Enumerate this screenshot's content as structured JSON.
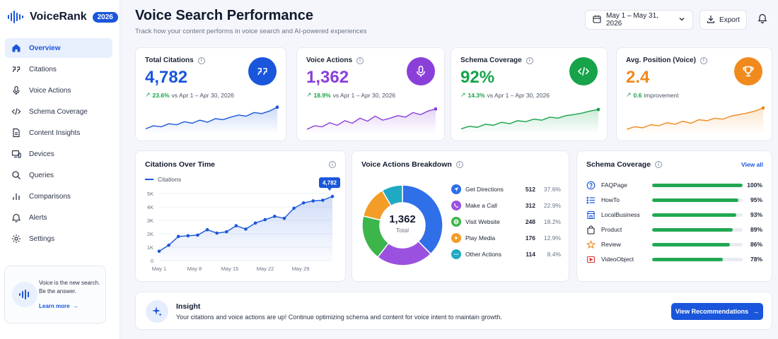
{
  "brand": {
    "name": "VoiceRank",
    "badge": "2026"
  },
  "sidebar": {
    "items": [
      {
        "label": "Overview",
        "icon": "home-icon",
        "active": true
      },
      {
        "label": "Citations",
        "icon": "quote-icon"
      },
      {
        "label": "Voice Actions",
        "icon": "microphone-icon"
      },
      {
        "label": "Schema Coverage",
        "icon": "code-icon"
      },
      {
        "label": "Content Insights",
        "icon": "document-icon"
      },
      {
        "label": "Devices",
        "icon": "devices-icon"
      },
      {
        "label": "Queries",
        "icon": "search-icon"
      },
      {
        "label": "Comparisons",
        "icon": "bar-chart-icon"
      },
      {
        "label": "Alerts",
        "icon": "bell-icon"
      },
      {
        "label": "Settings",
        "icon": "gear-icon"
      }
    ],
    "promo": {
      "text": "Voice is the new search. Be the answer.",
      "link": "Learn more"
    }
  },
  "header": {
    "title": "Voice Search Performance",
    "subtitle": "Track how your content performs in voice search and AI-powered experiences",
    "date_range": "May 1 – May 31, 2026",
    "export_label": "Export"
  },
  "kpis": [
    {
      "label": "Total Citations",
      "value": "4,782",
      "delta": "23.6%",
      "comparison": "vs Apr 1 – Apr 30, 2026",
      "color": "#1a56db",
      "icon": "quote-icon"
    },
    {
      "label": "Voice Actions",
      "value": "1,362",
      "delta": "18.9%",
      "comparison": "vs Apr 1 – Apr 30, 2026",
      "color": "#8b3fd9",
      "icon": "microphone-icon"
    },
    {
      "label": "Schema Coverage",
      "value": "92%",
      "delta": "14.3%",
      "comparison": "vs Apr 1 – Apr 30, 2026",
      "color": "#16a34a",
      "icon": "code-icon"
    },
    {
      "label": "Avg. Position (Voice)",
      "value": "2.4",
      "delta": "0.6",
      "comparison": "improvement",
      "color": "#f08a1c",
      "icon": "trophy-icon"
    }
  ],
  "citations_chart": {
    "title": "Citations Over Time",
    "legend": "Citations",
    "callout": "4,782"
  },
  "breakdown": {
    "title": "Voice Actions Breakdown",
    "total_value": "1,362",
    "total_label": "Total",
    "items": [
      {
        "name": "Get Directions",
        "count": "512",
        "pct": "37.6%",
        "color": "#2f6fe8",
        "icon": "navigation-icon"
      },
      {
        "name": "Make a Call",
        "count": "312",
        "pct": "22.9%",
        "color": "#9b51e0",
        "icon": "phone-icon"
      },
      {
        "name": "Visit Website",
        "count": "248",
        "pct": "18.2%",
        "color": "#3cb54a",
        "icon": "globe-icon"
      },
      {
        "name": "Play Media",
        "count": "176",
        "pct": "12.9%",
        "color": "#f39c27",
        "icon": "play-icon"
      },
      {
        "name": "Other Actions",
        "count": "114",
        "pct": "8.4%",
        "color": "#1fa9c4",
        "icon": "more-icon"
      }
    ]
  },
  "schema": {
    "title": "Schema Coverage",
    "view_all": "View all",
    "items": [
      {
        "name": "FAQPage",
        "pct": "100%",
        "value": 100,
        "icon": "help-circle-icon"
      },
      {
        "name": "HowTo",
        "pct": "95%",
        "value": 95,
        "icon": "list-icon"
      },
      {
        "name": "LocalBusiness",
        "pct": "93%",
        "value": 93,
        "icon": "store-icon"
      },
      {
        "name": "Product",
        "pct": "89%",
        "value": 89,
        "icon": "shopping-bag-icon"
      },
      {
        "name": "Review",
        "pct": "86%",
        "value": 86,
        "icon": "star-icon"
      },
      {
        "name": "VideoObject",
        "pct": "78%",
        "value": 78,
        "icon": "video-icon"
      }
    ]
  },
  "insight": {
    "title": "Insight",
    "text": "Your citations and voice actions are up! Continue optimizing schema and content for voice intent to maintain growth.",
    "button": "View Recommendations"
  },
  "chart_data": [
    {
      "type": "line",
      "title": "Citations Over Time",
      "series": [
        {
          "name": "Citations",
          "values": [
            700,
            1150,
            1800,
            1850,
            1900,
            2300,
            2050,
            2150,
            2600,
            2350,
            2800,
            3050,
            3300,
            3150,
            3900,
            4300,
            4450,
            4500,
            4782
          ]
        }
      ],
      "xtick_labels": [
        "May 1",
        "May 8",
        "May 15",
        "May 22",
        "May 29"
      ],
      "ytick_labels": [
        "0",
        "1K",
        "2K",
        "3K",
        "4K",
        "5K"
      ],
      "ylim": [
        0,
        5000
      ],
      "legend_position": "top-left",
      "grid": true
    },
    {
      "type": "pie",
      "title": "Voice Actions Breakdown",
      "categories": [
        "Get Directions",
        "Make a Call",
        "Visit Website",
        "Play Media",
        "Other Actions"
      ],
      "values": [
        512,
        312,
        248,
        176,
        114
      ]
    }
  ]
}
